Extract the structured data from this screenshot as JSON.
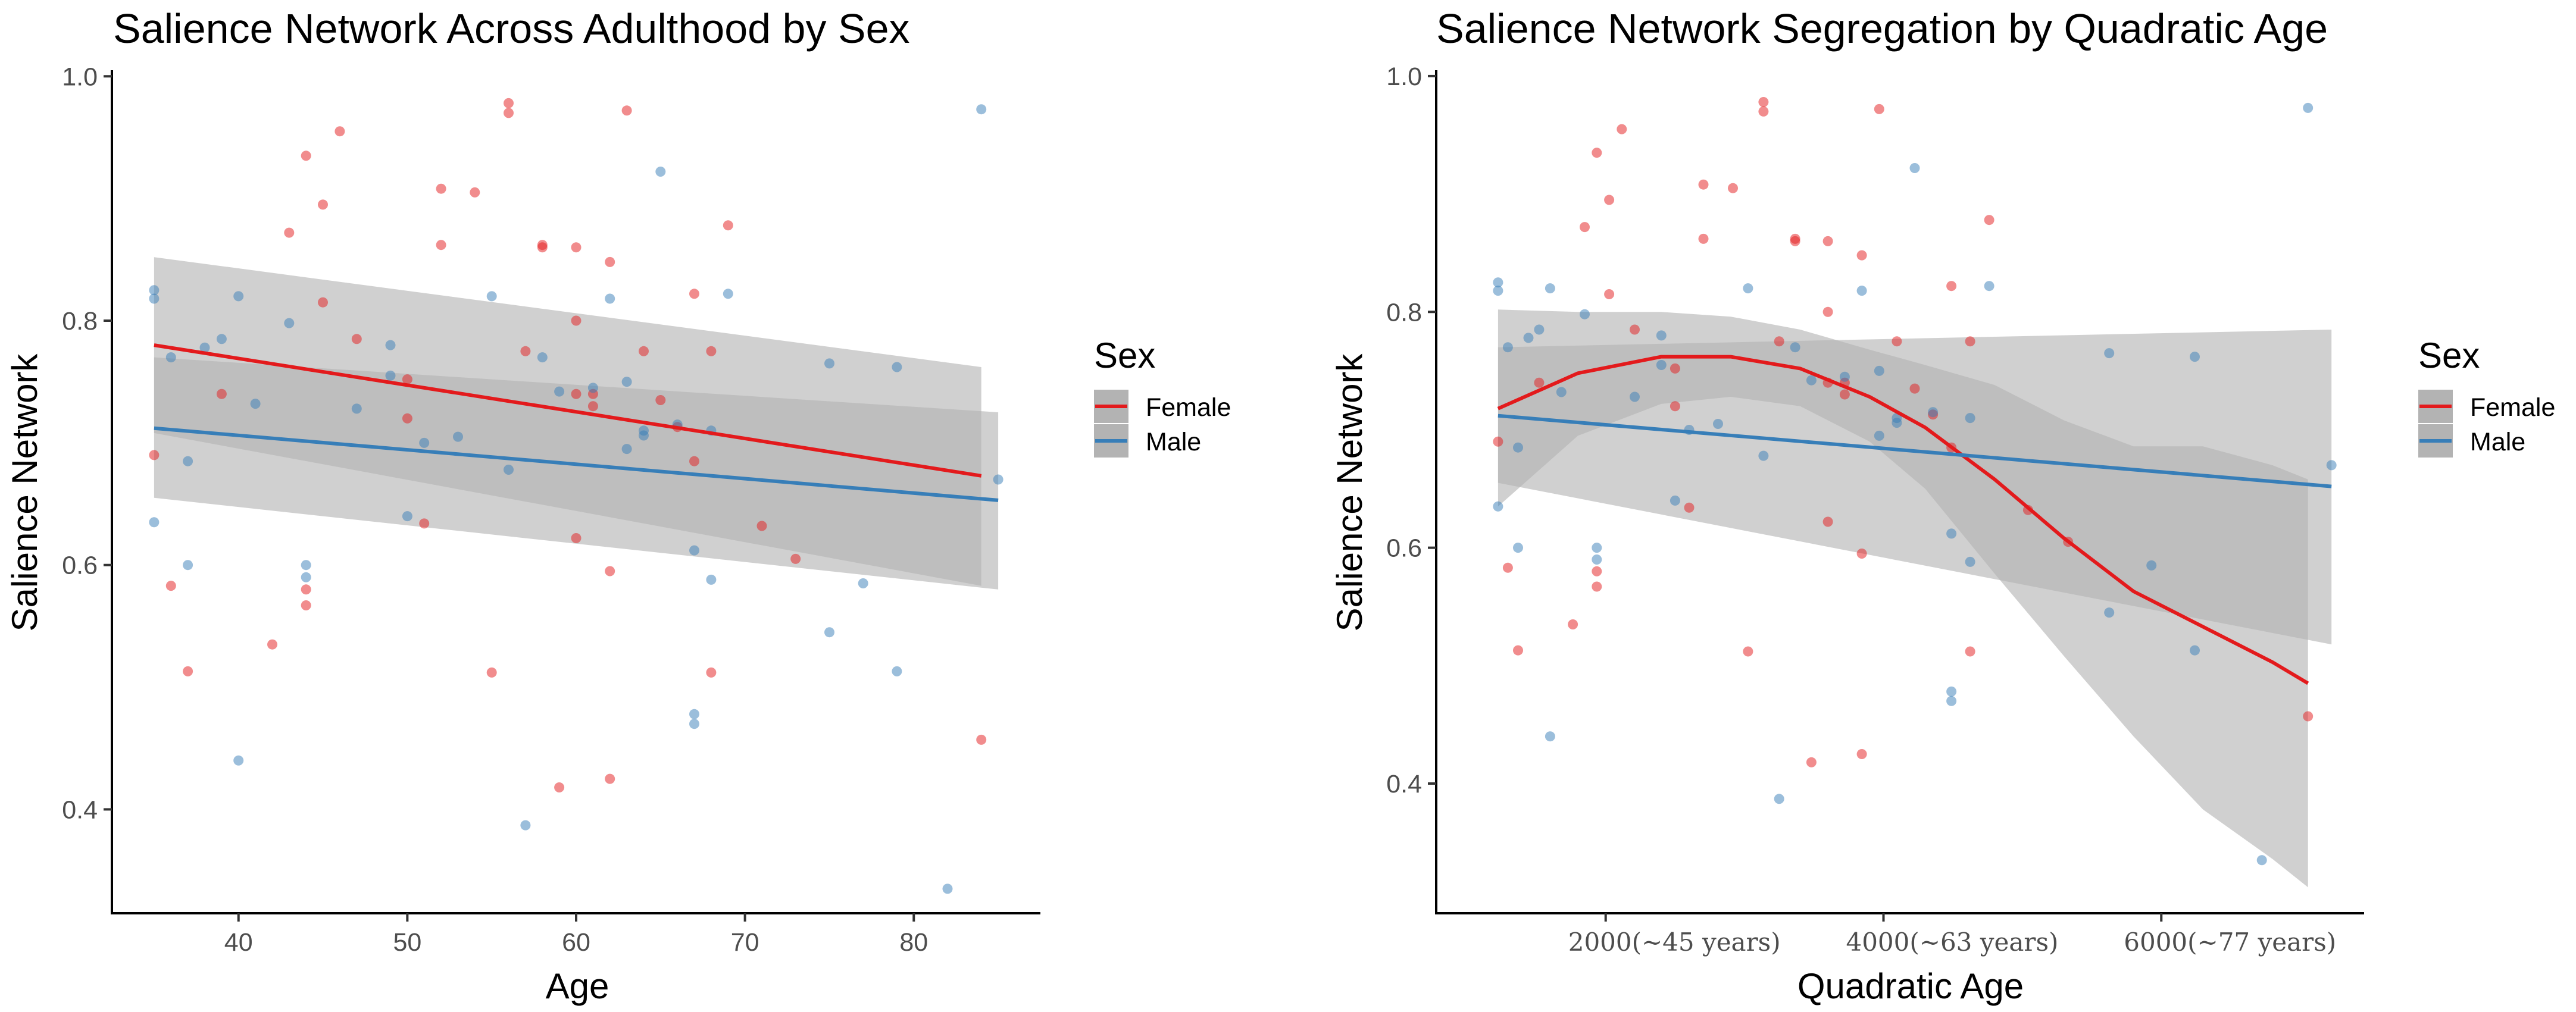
{
  "colors": {
    "female": "#e31a1c",
    "male": "#377eb8",
    "ribbon": "#b3b3b3",
    "axis": "#000000"
  },
  "legend": {
    "title": "Sex",
    "entries": [
      "Female",
      "Male"
    ]
  },
  "chart_data": [
    {
      "type": "scatter",
      "title": "Salience Network Across Adulthood by Sex",
      "xlabel": "Age",
      "ylabel": "Salience Network",
      "xlim": [
        32.5,
        87.5
      ],
      "ylim": [
        0.315,
        1.005
      ],
      "xticks": [
        40,
        50,
        60,
        70,
        80
      ],
      "xtick_labels": [
        "40",
        "50",
        "60",
        "70",
        "80"
      ],
      "yticks": [
        0.4,
        0.6,
        0.8,
        1.0
      ],
      "ytick_labels": [
        "0.4",
        "0.6",
        "0.8",
        "1.0"
      ],
      "series": [
        {
          "name": "Female",
          "x": [
            35,
            36,
            37,
            39,
            42,
            43,
            44,
            44,
            44,
            45,
            45,
            46,
            47,
            50,
            50,
            51,
            52,
            52,
            54,
            55,
            56,
            56,
            57,
            58,
            58,
            59,
            60,
            60,
            60,
            60,
            61,
            61,
            62,
            62,
            62,
            63,
            64,
            65,
            66,
            67,
            67,
            68,
            68,
            69,
            71,
            73,
            84
          ],
          "y": [
            0.69,
            0.583,
            0.513,
            0.74,
            0.535,
            0.872,
            0.935,
            0.567,
            0.58,
            0.895,
            0.815,
            0.955,
            0.785,
            0.752,
            0.72,
            0.634,
            0.862,
            0.908,
            0.905,
            0.512,
            0.978,
            0.97,
            0.775,
            0.862,
            0.86,
            0.418,
            0.86,
            0.74,
            0.8,
            0.622,
            0.73,
            0.74,
            0.848,
            0.595,
            0.425,
            0.972,
            0.775,
            0.735,
            0.713,
            0.822,
            0.685,
            0.775,
            0.512,
            0.878,
            0.632,
            0.605,
            0.457
          ]
        },
        {
          "name": "Male",
          "x": [
            35,
            35,
            35,
            36,
            37,
            37,
            38,
            39,
            40,
            40,
            41,
            43,
            44,
            44,
            47,
            49,
            49,
            50,
            51,
            53,
            55,
            56,
            57,
            58,
            59,
            61,
            62,
            63,
            63,
            64,
            64,
            65,
            66,
            67,
            67,
            67,
            68,
            68,
            69,
            75,
            75,
            77,
            79,
            79,
            82,
            84,
            85
          ],
          "y": [
            0.825,
            0.818,
            0.635,
            0.77,
            0.6,
            0.685,
            0.778,
            0.785,
            0.44,
            0.82,
            0.732,
            0.798,
            0.6,
            0.59,
            0.728,
            0.78,
            0.755,
            0.64,
            0.7,
            0.705,
            0.82,
            0.678,
            0.387,
            0.77,
            0.742,
            0.745,
            0.818,
            0.75,
            0.695,
            0.71,
            0.706,
            0.922,
            0.715,
            0.478,
            0.47,
            0.612,
            0.588,
            0.71,
            0.822,
            0.545,
            0.765,
            0.585,
            0.513,
            0.762,
            0.335,
            0.973,
            0.67
          ]
        }
      ],
      "fits": [
        {
          "name": "Female",
          "x": [
            35,
            84
          ],
          "y": [
            0.78,
            0.673
          ],
          "ci_lower": [
            0.708,
            0.583
          ],
          "ci_upper": [
            0.852,
            0.762
          ]
        },
        {
          "name": "Male",
          "x": [
            35,
            85
          ],
          "y": [
            0.712,
            0.653
          ],
          "ci_lower": [
            0.655,
            0.58
          ],
          "ci_upper": [
            0.77,
            0.725
          ]
        }
      ]
    },
    {
      "type": "scatter",
      "title": "Salience Network Segregation by Quadratic Age",
      "xlabel": "Quadratic Age",
      "ylabel": "Salience Network",
      "xlim": [
        780,
        7460
      ],
      "ylim": [
        0.29,
        1.005
      ],
      "xticks": [
        2000,
        4000,
        6000
      ],
      "xtick_labels": [
        "2000(~45 years)",
        "4000(~63 years)",
        "6000(~77 years)"
      ],
      "yticks": [
        0.4,
        0.6,
        0.8,
        1.0
      ],
      "ytick_labels": [
        "0.4",
        "0.6",
        "0.8",
        "1.0"
      ],
      "series": [
        {
          "name": "Female",
          "x": [
            1225,
            1296,
            1369,
            1521,
            1764,
            1849,
            1936,
            1936,
            1936,
            2025,
            2025,
            2116,
            2209,
            2500,
            2500,
            2601,
            2704,
            2704,
            2916,
            3025,
            3136,
            3136,
            3249,
            3364,
            3364,
            3481,
            3600,
            3600,
            3600,
            3600,
            3721,
            3721,
            3844,
            3844,
            3844,
            3969,
            4096,
            4225,
            4356,
            4489,
            4489,
            4624,
            4624,
            4761,
            5041,
            5329,
            7056
          ],
          "y": [
            0.69,
            0.583,
            0.513,
            0.74,
            0.535,
            0.872,
            0.935,
            0.567,
            0.58,
            0.895,
            0.815,
            0.955,
            0.785,
            0.752,
            0.72,
            0.634,
            0.862,
            0.908,
            0.905,
            0.512,
            0.978,
            0.97,
            0.775,
            0.862,
            0.86,
            0.418,
            0.86,
            0.74,
            0.8,
            0.622,
            0.73,
            0.74,
            0.848,
            0.595,
            0.425,
            0.972,
            0.775,
            0.735,
            0.713,
            0.822,
            0.685,
            0.775,
            0.512,
            0.878,
            0.632,
            0.605,
            0.457
          ]
        },
        {
          "name": "Male",
          "x": [
            1225,
            1225,
            1225,
            1296,
            1369,
            1369,
            1444,
            1521,
            1600,
            1600,
            1681,
            1849,
            1936,
            1936,
            2209,
            2401,
            2401,
            2500,
            2601,
            2809,
            3025,
            3136,
            3249,
            3364,
            3481,
            3721,
            3844,
            3969,
            3969,
            4096,
            4096,
            4225,
            4356,
            4489,
            4489,
            4489,
            4624,
            4624,
            4761,
            5625,
            5625,
            5929,
            6241,
            6241,
            6724,
            7056,
            7225
          ],
          "y": [
            0.825,
            0.818,
            0.635,
            0.77,
            0.6,
            0.685,
            0.778,
            0.785,
            0.44,
            0.82,
            0.732,
            0.798,
            0.6,
            0.59,
            0.728,
            0.78,
            0.755,
            0.64,
            0.7,
            0.705,
            0.82,
            0.678,
            0.387,
            0.77,
            0.742,
            0.745,
            0.818,
            0.75,
            0.695,
            0.71,
            0.706,
            0.922,
            0.715,
            0.478,
            0.47,
            0.612,
            0.588,
            0.71,
            0.822,
            0.545,
            0.765,
            0.585,
            0.513,
            0.762,
            0.335,
            0.973,
            0.67
          ]
        }
      ],
      "fits": [
        {
          "name": "Female",
          "x": [
            1225,
            1800,
            2400,
            2900,
            3400,
            3900,
            4300,
            4800,
            5300,
            5800,
            6300,
            6800,
            7056
          ],
          "y": [
            0.718,
            0.748,
            0.762,
            0.762,
            0.752,
            0.728,
            0.702,
            0.658,
            0.608,
            0.563,
            0.533,
            0.503,
            0.485
          ],
          "ci_lower": [
            0.635,
            0.695,
            0.722,
            0.728,
            0.72,
            0.69,
            0.65,
            0.578,
            0.508,
            0.44,
            0.378,
            0.336,
            0.312
          ],
          "ci_upper": [
            0.802,
            0.8,
            0.8,
            0.796,
            0.785,
            0.768,
            0.755,
            0.738,
            0.708,
            0.686,
            0.686,
            0.67,
            0.658
          ]
        },
        {
          "name": "Male",
          "x": [
            1225,
            7225
          ],
          "y": [
            0.712,
            0.652
          ],
          "ci_lower": [
            0.655,
            0.518
          ],
          "ci_upper": [
            0.77,
            0.785
          ]
        }
      ]
    }
  ]
}
